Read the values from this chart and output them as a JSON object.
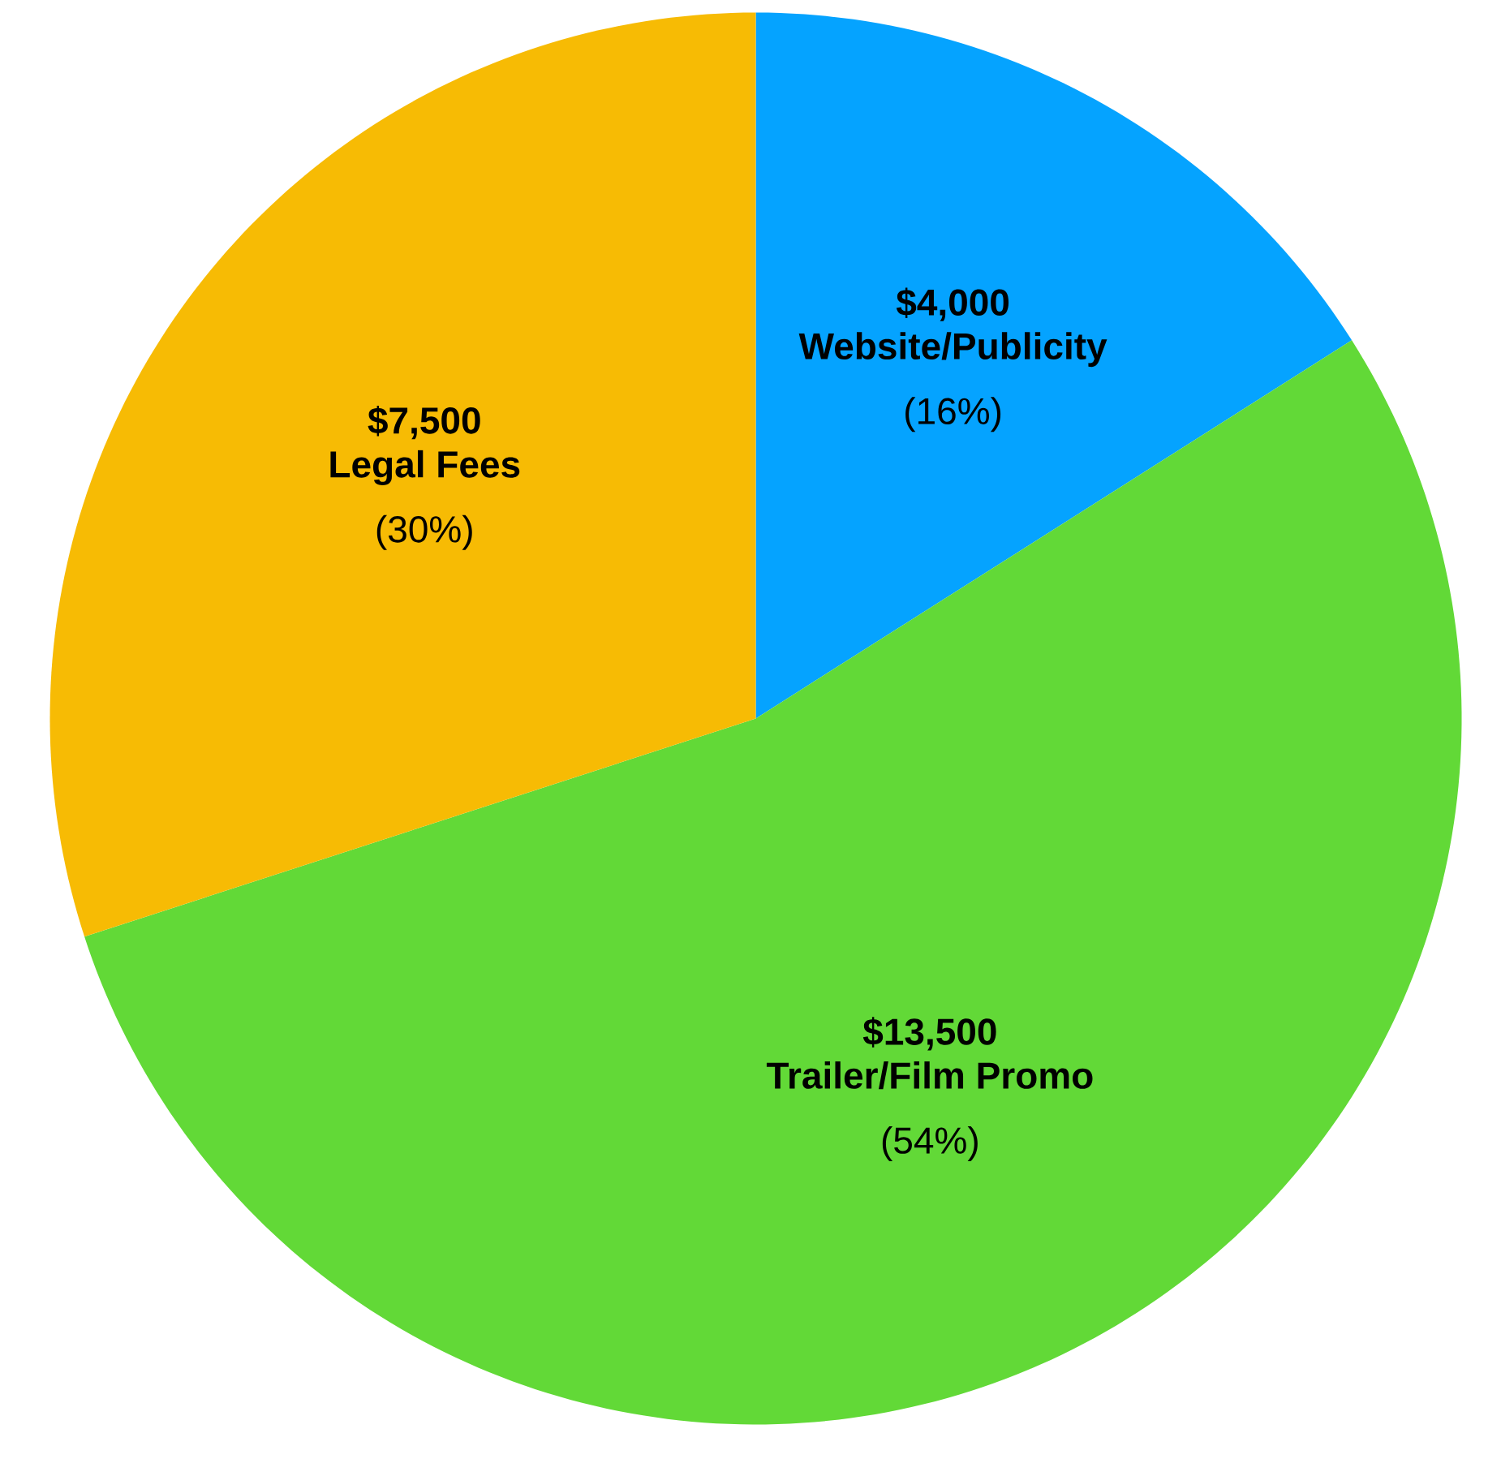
{
  "chart_data": {
    "type": "pie",
    "categories": [
      "Website/Publicity",
      "Trailer/Film Promo",
      "Legal Fees"
    ],
    "values": [
      4000,
      13500,
      7500
    ],
    "colors": [
      "#05a3ff",
      "#62d937",
      "#f7bb04"
    ],
    "value_labels": [
      "$4,000",
      "$13,500",
      "$7,500"
    ],
    "annotations": [
      "(16%)",
      "(54%)",
      "(30%)"
    ]
  }
}
